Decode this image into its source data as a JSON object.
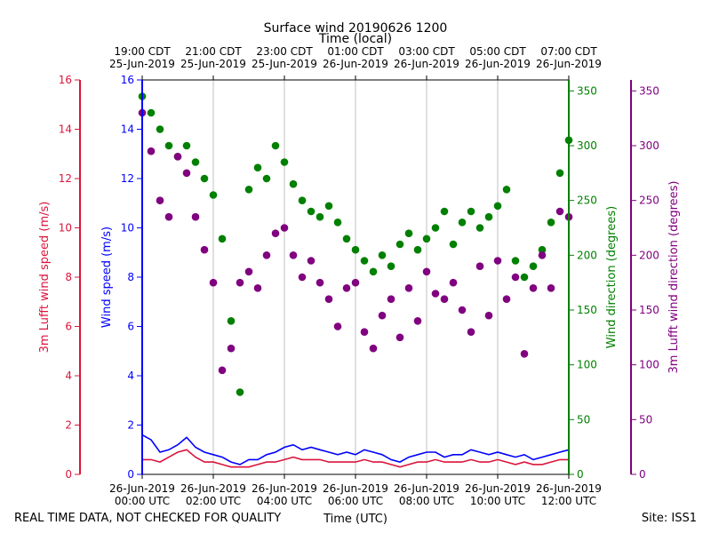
{
  "chart_data": {
    "type": "scatter",
    "title": "Surface wind 20190626 1200",
    "top_axis_label": "Time (local)",
    "xlabel": "Time (UTC)",
    "footer_left": "REAL TIME DATA, NOT CHECKED FOR QUALITY",
    "footer_right": "Site: ISS1",
    "x_range_hours_utc": [
      0,
      12
    ],
    "bottom_ticks": [
      {
        "h": 0,
        "l1": "26-Jun-2019",
        "l2": "00:00 UTC"
      },
      {
        "h": 2,
        "l1": "26-Jun-2019",
        "l2": "02:00 UTC"
      },
      {
        "h": 4,
        "l1": "26-Jun-2019",
        "l2": "04:00 UTC"
      },
      {
        "h": 6,
        "l1": "26-Jun-2019",
        "l2": "06:00 UTC"
      },
      {
        "h": 8,
        "l1": "26-Jun-2019",
        "l2": "08:00 UTC"
      },
      {
        "h": 10,
        "l1": "26-Jun-2019",
        "l2": "10:00 UTC"
      },
      {
        "h": 12,
        "l1": "26-Jun-2019",
        "l2": "12:00 UTC"
      }
    ],
    "top_ticks": [
      {
        "h": 0,
        "l1": "19:00 CDT",
        "l2": "25-Jun-2019"
      },
      {
        "h": 2,
        "l1": "21:00 CDT",
        "l2": "25-Jun-2019"
      },
      {
        "h": 4,
        "l1": "23:00 CDT",
        "l2": "25-Jun-2019"
      },
      {
        "h": 6,
        "l1": "01:00 CDT",
        "l2": "26-Jun-2019"
      },
      {
        "h": 8,
        "l1": "03:00 CDT",
        "l2": "26-Jun-2019"
      },
      {
        "h": 10,
        "l1": "05:00 CDT",
        "l2": "26-Jun-2019"
      },
      {
        "h": 12,
        "l1": "07:00 CDT",
        "l2": "26-Jun-2019"
      }
    ],
    "axes": {
      "lufft_speed": {
        "label": "3m Lufft wind speed (m/s)",
        "range": [
          0,
          16
        ],
        "ticks": [
          0,
          2,
          4,
          6,
          8,
          10,
          12,
          14,
          16
        ],
        "color": "#dc143c"
      },
      "wind_speed": {
        "label": "Wind speed (m/s)",
        "range": [
          0,
          16
        ],
        "ticks": [
          0,
          2,
          4,
          6,
          8,
          10,
          12,
          14,
          16
        ],
        "color": "#0000ff"
      },
      "wind_dir": {
        "label": "Wind direction (degrees)",
        "range": [
          0,
          360
        ],
        "ticks": [
          0,
          50,
          100,
          150,
          200,
          250,
          300,
          350
        ],
        "color": "#008000"
      },
      "lufft_dir": {
        "label": "3m Lufft wind direction (degrees)",
        "range": [
          0,
          360
        ],
        "ticks": [
          0,
          50,
          100,
          150,
          200,
          250,
          300,
          350
        ],
        "color": "#800080"
      }
    },
    "series": [
      {
        "name": "Wind speed (m/s)",
        "kind": "line",
        "axis": "wind_speed",
        "color": "#0000ff",
        "x": [
          0,
          0.25,
          0.5,
          0.75,
          1,
          1.25,
          1.5,
          1.75,
          2,
          2.25,
          2.5,
          2.75,
          3,
          3.25,
          3.5,
          3.75,
          4,
          4.25,
          4.5,
          4.75,
          5,
          5.25,
          5.5,
          5.75,
          6,
          6.25,
          6.5,
          6.75,
          7,
          7.25,
          7.5,
          7.75,
          8,
          8.25,
          8.5,
          8.75,
          9,
          9.25,
          9.5,
          9.75,
          10,
          10.25,
          10.5,
          10.75,
          11,
          11.25,
          11.5,
          11.75,
          12
        ],
        "values": [
          1.6,
          1.4,
          0.9,
          1.0,
          1.2,
          1.5,
          1.1,
          0.9,
          0.8,
          0.7,
          0.5,
          0.4,
          0.6,
          0.6,
          0.8,
          0.9,
          1.1,
          1.2,
          1.0,
          1.1,
          1.0,
          0.9,
          0.8,
          0.9,
          0.8,
          1.0,
          0.9,
          0.8,
          0.6,
          0.5,
          0.7,
          0.8,
          0.9,
          0.9,
          0.7,
          0.8,
          0.8,
          1.0,
          0.9,
          0.8,
          0.9,
          0.8,
          0.7,
          0.8,
          0.6,
          0.7,
          0.8,
          0.9,
          1.0
        ]
      },
      {
        "name": "3m Lufft wind speed (m/s)",
        "kind": "line",
        "axis": "lufft_speed",
        "color": "#dc143c",
        "x": [
          0,
          0.25,
          0.5,
          0.75,
          1,
          1.25,
          1.5,
          1.75,
          2,
          2.25,
          2.5,
          2.75,
          3,
          3.25,
          3.5,
          3.75,
          4,
          4.25,
          4.5,
          4.75,
          5,
          5.25,
          5.5,
          5.75,
          6,
          6.25,
          6.5,
          6.75,
          7,
          7.25,
          7.5,
          7.75,
          8,
          8.25,
          8.5,
          8.75,
          9,
          9.25,
          9.5,
          9.75,
          10,
          10.25,
          10.5,
          10.75,
          11,
          11.25,
          11.5,
          11.75,
          12
        ],
        "values": [
          0.6,
          0.6,
          0.5,
          0.7,
          0.9,
          1.0,
          0.7,
          0.5,
          0.5,
          0.4,
          0.3,
          0.3,
          0.3,
          0.4,
          0.5,
          0.5,
          0.6,
          0.7,
          0.6,
          0.6,
          0.6,
          0.5,
          0.5,
          0.5,
          0.5,
          0.6,
          0.5,
          0.5,
          0.4,
          0.3,
          0.4,
          0.5,
          0.5,
          0.6,
          0.5,
          0.5,
          0.5,
          0.6,
          0.5,
          0.5,
          0.6,
          0.5,
          0.4,
          0.5,
          0.4,
          0.4,
          0.5,
          0.6,
          0.6
        ]
      },
      {
        "name": "Wind direction (degrees)",
        "kind": "scatter",
        "axis": "wind_dir",
        "color": "#008000",
        "x": [
          0,
          0.25,
          0.5,
          0.75,
          1,
          1.25,
          1.5,
          1.75,
          2,
          2.25,
          2.5,
          2.75,
          3,
          3.25,
          3.5,
          3.75,
          4,
          4.25,
          4.5,
          4.75,
          5,
          5.25,
          5.5,
          5.75,
          6,
          6.25,
          6.5,
          6.75,
          7,
          7.25,
          7.5,
          7.75,
          8,
          8.25,
          8.5,
          8.75,
          9,
          9.25,
          9.5,
          9.75,
          10,
          10.25,
          10.5,
          10.75,
          11,
          11.25,
          11.5,
          11.75,
          12
        ],
        "values": [
          345,
          330,
          315,
          300,
          290,
          300,
          285,
          270,
          255,
          215,
          140,
          75,
          260,
          280,
          270,
          300,
          285,
          265,
          250,
          240,
          235,
          245,
          230,
          215,
          205,
          195,
          185,
          200,
          190,
          210,
          220,
          205,
          215,
          225,
          240,
          210,
          230,
          240,
          225,
          235,
          245,
          260,
          195,
          180,
          190,
          205,
          230,
          275,
          305
        ]
      },
      {
        "name": "3m Lufft wind direction (degrees)",
        "kind": "scatter",
        "axis": "lufft_dir",
        "color": "#800080",
        "x": [
          0,
          0.25,
          0.5,
          0.75,
          1,
          1.25,
          1.5,
          1.75,
          2,
          2.25,
          2.5,
          2.75,
          3,
          3.25,
          3.5,
          3.75,
          4,
          4.25,
          4.5,
          4.75,
          5,
          5.25,
          5.5,
          5.75,
          6,
          6.25,
          6.5,
          6.75,
          7,
          7.25,
          7.5,
          7.75,
          8,
          8.25,
          8.5,
          8.75,
          9,
          9.25,
          9.5,
          9.75,
          10,
          10.25,
          10.5,
          10.75,
          11,
          11.25,
          11.5,
          11.75,
          12
        ],
        "values": [
          330,
          295,
          250,
          235,
          290,
          275,
          235,
          205,
          175,
          95,
          115,
          175,
          185,
          170,
          200,
          220,
          225,
          200,
          180,
          195,
          175,
          160,
          135,
          170,
          175,
          130,
          115,
          145,
          160,
          125,
          170,
          140,
          185,
          165,
          160,
          175,
          150,
          130,
          190,
          145,
          195,
          160,
          180,
          110,
          170,
          200,
          170,
          240,
          235
        ]
      }
    ]
  }
}
